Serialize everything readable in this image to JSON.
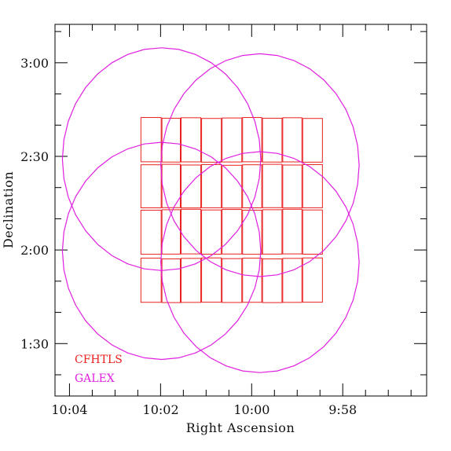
{
  "chart_data": {
    "type": "scatter",
    "xlabel": "Right Ascension",
    "ylabel": "Declination",
    "x_axis": {
      "unit": "RA minutes (hours 9-10)",
      "range": [
        10.072,
        9.936
      ],
      "reversed": true,
      "ticks": [
        {
          "value": 10.0667,
          "label": "10:04"
        },
        {
          "value": 10.0333,
          "label": "10:02"
        },
        {
          "value": 10.0,
          "label": "10:00"
        },
        {
          "value": 9.9667,
          "label": "9:58"
        }
      ]
    },
    "y_axis": {
      "unit": "degrees",
      "range": [
        1.22,
        3.205
      ],
      "ticks": [
        {
          "value": 1.5,
          "label": "1:30"
        },
        {
          "value": 2.0,
          "label": "2:00"
        },
        {
          "value": 2.5,
          "label": "2:30"
        },
        {
          "value": 3.0,
          "label": "3:00"
        }
      ]
    },
    "grid": false,
    "legend": {
      "placement": "bottom-left",
      "entries": [
        {
          "label": "CFHTLS",
          "color": "#e8201f"
        },
        {
          "label": "GALEX",
          "color": "#e020e0"
        }
      ]
    },
    "series": [
      {
        "name": "CFHTLS",
        "kind": "rectangles",
        "color": "#e8201f",
        "rows": [
          {
            "dec_top": 2.705,
            "dec_bottom": 2.47
          },
          {
            "dec_top": 2.455,
            "dec_bottom": 2.225
          },
          {
            "dec_top": 2.215,
            "dec_bottom": 1.978
          },
          {
            "dec_top": 1.955,
            "dec_bottom": 1.72
          }
        ],
        "columns_ra_edges": [
          10.0407,
          10.033,
          10.026,
          10.0185,
          10.011,
          10.0035,
          9.9962,
          9.9888,
          9.9815,
          9.974
        ]
      },
      {
        "name": "GALEX",
        "kind": "circles",
        "color": "#e020e0",
        "circles": [
          {
            "ra": 10.033,
            "dec": 2.485,
            "radius_ra": 0.0363,
            "radius_dec": 0.595
          },
          {
            "ra": 9.997,
            "dec": 2.453,
            "radius_ra": 0.0363,
            "radius_dec": 0.595
          },
          {
            "ra": 10.033,
            "dec": 1.995,
            "radius_ra": 0.0363,
            "radius_dec": 0.58
          },
          {
            "ra": 9.997,
            "dec": 1.935,
            "radius_ra": 0.0363,
            "radius_dec": 0.59
          }
        ]
      }
    ]
  }
}
